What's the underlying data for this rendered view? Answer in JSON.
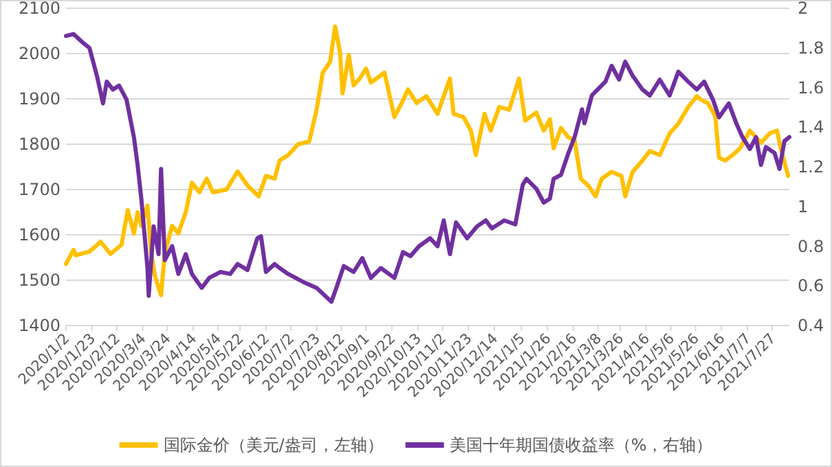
{
  "chart_data": {
    "type": "line",
    "legend": "bottom",
    "grid": "y",
    "line_style": "solid",
    "marker": "none",
    "xlim": [
      "2020-01-02",
      "2021-08-10"
    ],
    "xticks": [
      {
        "value": "2020-01-02",
        "label": "2020/1/2"
      },
      {
        "value": "2020-01-23",
        "label": "2020/1/23"
      },
      {
        "value": "2020-02-12",
        "label": "2020/2/12"
      },
      {
        "value": "2020-03-04",
        "label": "2020/3/4"
      },
      {
        "value": "2020-03-24",
        "label": "2020/3/24"
      },
      {
        "value": "2020-04-14",
        "label": "2020/4/14"
      },
      {
        "value": "2020-05-04",
        "label": "2020/5/4"
      },
      {
        "value": "2020-05-22",
        "label": "2020/5/22"
      },
      {
        "value": "2020-06-12",
        "label": "2020/6/12"
      },
      {
        "value": "2020-07-02",
        "label": "2020/7/2"
      },
      {
        "value": "2020-07-23",
        "label": "2020/7/23"
      },
      {
        "value": "2020-08-12",
        "label": "2020/8/12"
      },
      {
        "value": "2020-09-01",
        "label": "2020/9/1"
      },
      {
        "value": "2020-09-22",
        "label": "2020/9/22"
      },
      {
        "value": "2020-10-13",
        "label": "2020/10/13"
      },
      {
        "value": "2020-11-02",
        "label": "2020/11/2"
      },
      {
        "value": "2020-11-23",
        "label": "2020/11/23"
      },
      {
        "value": "2020-12-14",
        "label": "2020/12/14"
      },
      {
        "value": "2021-01-05",
        "label": "2021/1/5"
      },
      {
        "value": "2021-01-26",
        "label": "2021/1/26"
      },
      {
        "value": "2021-02-16",
        "label": "2021/2/16"
      },
      {
        "value": "2021-03-08",
        "label": "2021/3/8"
      },
      {
        "value": "2021-03-26",
        "label": "2021/3/26"
      },
      {
        "value": "2021-04-16",
        "label": "2021/4/16"
      },
      {
        "value": "2021-05-06",
        "label": "2021/5/6"
      },
      {
        "value": "2021-05-26",
        "label": "2021/5/26"
      },
      {
        "value": "2021-06-16",
        "label": "2021/6/16"
      },
      {
        "value": "2021-07-07",
        "label": "2021/7/7"
      },
      {
        "value": "2021-07-27",
        "label": "2021/7/27"
      }
    ],
    "ylim": [
      1400,
      2100
    ],
    "yticks": [
      1400,
      1500,
      1600,
      1700,
      1800,
      1900,
      2000,
      2100
    ],
    "y2lim": [
      0.4,
      2
    ],
    "y2ticks": [
      0.4,
      0.6,
      0.8,
      1,
      1.2,
      1.4,
      1.6,
      1.8,
      2
    ],
    "series": [
      {
        "name": "国际金价（美元/盎司，左轴）",
        "color": "#ffc000",
        "x": [
          "2020-01-02",
          "2020-01-08",
          "2020-01-10",
          "2020-01-21",
          "2020-01-30",
          "2020-02-07",
          "2020-02-16",
          "2020-02-21",
          "2020-02-26",
          "2020-02-29",
          "2020-03-03",
          "2020-03-08",
          "2020-03-11",
          "2020-03-14",
          "2020-03-19",
          "2020-03-22",
          "2020-03-28",
          "2020-04-02",
          "2020-04-08",
          "2020-04-13",
          "2020-04-19",
          "2020-04-25",
          "2020-04-30",
          "2020-05-11",
          "2020-05-20",
          "2020-05-28",
          "2020-06-06",
          "2020-06-12",
          "2020-06-19",
          "2020-06-23",
          "2020-06-30",
          "2020-07-08",
          "2020-07-17",
          "2020-07-23",
          "2020-07-28",
          "2020-08-03",
          "2020-08-07",
          "2020-08-11",
          "2020-08-13",
          "2020-08-18",
          "2020-08-22",
          "2020-08-27",
          "2020-09-01",
          "2020-09-05",
          "2020-09-16",
          "2020-09-24",
          "2020-09-30",
          "2020-10-05",
          "2020-10-12",
          "2020-10-20",
          "2020-10-29",
          "2020-11-08",
          "2020-11-11",
          "2020-11-19",
          "2020-11-25",
          "2020-11-29",
          "2020-12-06",
          "2020-12-11",
          "2020-12-18",
          "2020-12-26",
          "2021-01-03",
          "2021-01-08",
          "2021-01-17",
          "2021-01-23",
          "2021-01-28",
          "2021-01-31",
          "2021-02-06",
          "2021-02-12",
          "2021-02-17",
          "2021-02-22",
          "2021-02-28",
          "2021-03-06",
          "2021-03-11",
          "2021-03-19",
          "2021-03-27",
          "2021-03-30",
          "2021-04-05",
          "2021-04-13",
          "2021-04-19",
          "2021-04-27",
          "2021-05-05",
          "2021-05-12",
          "2021-05-20",
          "2021-05-27",
          "2021-05-31",
          "2021-06-05",
          "2021-06-11",
          "2021-06-14",
          "2021-06-19",
          "2021-06-25",
          "2021-07-01",
          "2021-07-09",
          "2021-07-18",
          "2021-07-25",
          "2021-07-31",
          "2021-08-03",
          "2021-08-09"
        ],
        "values": [
          1536,
          1567,
          1555,
          1563,
          1585,
          1558,
          1578,
          1655,
          1603,
          1650,
          1620,
          1665,
          1560,
          1510,
          1467,
          1560,
          1620,
          1603,
          1650,
          1715,
          1694,
          1724,
          1694,
          1700,
          1740,
          1709,
          1685,
          1730,
          1724,
          1764,
          1776,
          1800,
          1806,
          1876,
          1958,
          1982,
          2060,
          2003,
          1912,
          1997,
          1930,
          1945,
          1967,
          1936,
          1958,
          1860,
          1891,
          1921,
          1891,
          1906,
          1867,
          1945,
          1867,
          1860,
          1830,
          1776,
          1867,
          1830,
          1882,
          1876,
          1945,
          1852,
          1870,
          1830,
          1855,
          1791,
          1836,
          1815,
          1809,
          1724,
          1709,
          1685,
          1724,
          1739,
          1730,
          1685,
          1739,
          1764,
          1785,
          1776,
          1824,
          1845,
          1882,
          1906,
          1897,
          1891,
          1861,
          1770,
          1764,
          1776,
          1791,
          1830,
          1803,
          1824,
          1830,
          1791,
          1730
        ]
      },
      {
        "name": "美国十年期国债收益率（%，右轴）",
        "color": "#7030a0",
        "axis": "y2",
        "x": [
          "2020-01-02",
          "2020-01-08",
          "2020-01-15",
          "2020-01-21",
          "2020-01-27",
          "2020-02-01",
          "2020-02-04",
          "2020-02-09",
          "2020-02-14",
          "2020-02-20",
          "2020-02-26",
          "2020-02-29",
          "2020-03-03",
          "2020-03-08",
          "2020-03-09",
          "2020-03-13",
          "2020-03-17",
          "2020-03-19",
          "2020-03-22",
          "2020-03-28",
          "2020-04-02",
          "2020-04-08",
          "2020-04-13",
          "2020-04-21",
          "2020-04-27",
          "2020-05-06",
          "2020-05-14",
          "2020-05-20",
          "2020-05-28",
          "2020-06-05",
          "2020-06-08",
          "2020-06-12",
          "2020-06-19",
          "2020-06-23",
          "2020-06-30",
          "2020-07-12",
          "2020-07-23",
          "2020-08-04",
          "2020-08-08",
          "2020-08-14",
          "2020-08-22",
          "2020-08-29",
          "2020-09-05",
          "2020-09-13",
          "2020-09-24",
          "2020-10-01",
          "2020-10-07",
          "2020-10-14",
          "2020-10-23",
          "2020-10-29",
          "2020-11-03",
          "2020-11-08",
          "2020-11-13",
          "2020-11-22",
          "2020-11-30",
          "2020-12-07",
          "2020-12-12",
          "2020-12-22",
          "2020-12-31",
          "2021-01-06",
          "2021-01-09",
          "2021-01-17",
          "2021-01-23",
          "2021-01-28",
          "2021-01-31",
          "2021-02-06",
          "2021-02-12",
          "2021-02-17",
          "2021-02-23",
          "2021-02-25",
          "2021-03-03",
          "2021-03-06",
          "2021-03-14",
          "2021-03-19",
          "2021-03-25",
          "2021-03-30",
          "2021-04-05",
          "2021-04-13",
          "2021-04-19",
          "2021-04-27",
          "2021-05-05",
          "2021-05-12",
          "2021-05-20",
          "2021-05-27",
          "2021-06-02",
          "2021-06-09",
          "2021-06-14",
          "2021-06-22",
          "2021-06-28",
          "2021-07-03",
          "2021-07-09",
          "2021-07-14",
          "2021-07-18",
          "2021-07-22",
          "2021-07-29",
          "2021-08-02",
          "2021-08-06",
          "2021-08-10"
        ],
        "values": [
          1.86,
          1.87,
          1.83,
          1.8,
          1.66,
          1.52,
          1.63,
          1.59,
          1.61,
          1.54,
          1.35,
          1.21,
          1.04,
          0.69,
          0.55,
          0.9,
          0.76,
          1.19,
          0.73,
          0.8,
          0.66,
          0.76,
          0.66,
          0.59,
          0.64,
          0.67,
          0.66,
          0.71,
          0.68,
          0.84,
          0.85,
          0.67,
          0.71,
          0.69,
          0.66,
          0.62,
          0.59,
          0.52,
          0.59,
          0.7,
          0.67,
          0.74,
          0.64,
          0.69,
          0.64,
          0.77,
          0.75,
          0.8,
          0.84,
          0.8,
          0.93,
          0.76,
          0.92,
          0.84,
          0.9,
          0.93,
          0.89,
          0.93,
          0.91,
          1.11,
          1.14,
          1.09,
          1.02,
          1.04,
          1.14,
          1.16,
          1.27,
          1.35,
          1.49,
          1.42,
          1.56,
          1.58,
          1.63,
          1.71,
          1.64,
          1.73,
          1.66,
          1.59,
          1.56,
          1.64,
          1.56,
          1.68,
          1.63,
          1.59,
          1.63,
          1.54,
          1.45,
          1.52,
          1.42,
          1.35,
          1.29,
          1.35,
          1.21,
          1.3,
          1.27,
          1.19,
          1.33,
          1.35
        ]
      }
    ]
  }
}
